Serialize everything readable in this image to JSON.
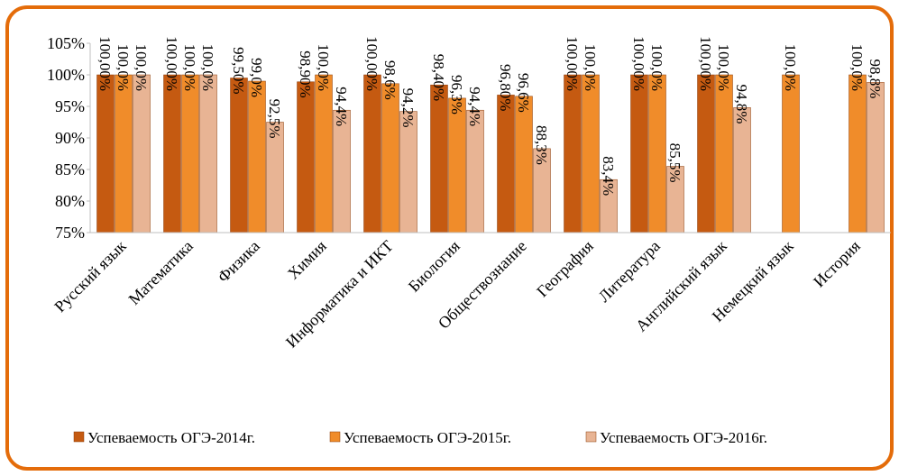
{
  "chart_data": {
    "type": "bar",
    "categories": [
      "Русский язык",
      "Математика",
      "Физика",
      "Химия",
      "Информатика и ИКТ",
      "Биология",
      "Обществознание",
      "География",
      "Литература",
      "Английский язык",
      "Немецкий язык",
      "История"
    ],
    "series": [
      {
        "name": "Успеваемость ОГЭ-2014г.",
        "color": "#c55a11",
        "values": [
          100,
          100,
          99.5,
          98.9,
          100,
          98.4,
          96.8,
          100,
          100,
          100,
          null,
          null
        ],
        "value_labels": [
          "100,00%",
          "100,00%",
          "99,50%",
          "98,90%",
          "100,00%",
          "98,40%",
          "96,80%",
          "100,00%",
          "100,00%",
          "100,00%",
          null,
          null
        ]
      },
      {
        "name": "Успеваемость ОГЭ-2015г.",
        "color": "#f08c2a",
        "values": [
          100,
          100,
          99,
          100,
          98.6,
          96.3,
          96.6,
          100,
          100,
          100,
          100,
          100
        ],
        "value_labels": [
          "100,0%",
          "100,0%",
          "99,0%",
          "100,0%",
          "98,6%",
          "96,3%",
          "96,6%",
          "100,0%",
          "100,0%",
          "100,0%",
          "100,0%",
          "100,0%"
        ]
      },
      {
        "name": "Успеваемость ОГЭ-2016г.",
        "color": "#e8b494",
        "values": [
          100,
          100,
          92.5,
          94.4,
          94.2,
          94.4,
          88.3,
          83.4,
          85.5,
          94.8,
          null,
          98.8
        ],
        "value_labels": [
          "100,0%",
          "100,0%",
          "92,5%",
          "94,4%",
          "94,2%",
          "94,4%",
          "88,3%",
          "83,4%",
          "85,5%",
          "94,8%",
          null,
          "98,8%"
        ]
      }
    ],
    "ylim": [
      75,
      105
    ],
    "yticks": [
      {
        "value": 75,
        "label": "75%"
      },
      {
        "value": 80,
        "label": "80%"
      },
      {
        "value": 85,
        "label": "85%"
      },
      {
        "value": 90,
        "label": "90%"
      },
      {
        "value": 95,
        "label": "95%"
      },
      {
        "value": 100,
        "label": "100%"
      },
      {
        "value": 105,
        "label": "105%"
      }
    ],
    "grid": false,
    "legend": "bottom"
  }
}
